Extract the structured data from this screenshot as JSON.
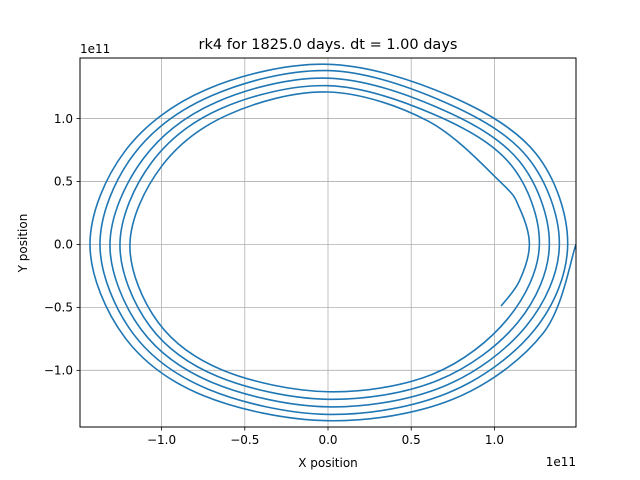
{
  "chart_data": {
    "type": "line",
    "title": "rk4 for 1825.0 days. dt = 1.00 days",
    "xlabel": "X position",
    "ylabel": "Y position",
    "x_offset_label": "1e11",
    "y_offset_label": "1e11",
    "xlim": [
      -1.49,
      1.49
    ],
    "ylim": [
      -1.45,
      1.48
    ],
    "xticks": [
      -1.0,
      -0.5,
      0.0,
      0.5,
      1.0
    ],
    "xtick_labels": [
      "−1.0",
      "−0.5",
      "0.0",
      "0.5",
      "1.0"
    ],
    "yticks": [
      -1.0,
      -0.5,
      0.0,
      0.5,
      1.0
    ],
    "ytick_labels": [
      "−1.0",
      "−0.5",
      "0.0",
      "0.5",
      "1.0"
    ],
    "grid": true,
    "line_color": "#1f77b4",
    "series": [
      {
        "points": [
          [
            1.04,
            -0.49
          ],
          [
            1.15,
            -0.29
          ],
          [
            1.21,
            0.0
          ],
          [
            1.15,
            0.29
          ],
          [
            1.04,
            0.49
          ],
          [
            0.6,
            0.98
          ],
          [
            0.0,
            1.21
          ],
          [
            -0.6,
            1.03
          ],
          [
            -1.0,
            0.62
          ],
          [
            -1.19,
            0.0
          ],
          [
            -1.02,
            -0.62
          ],
          [
            -0.63,
            -1.0
          ],
          [
            0.0,
            -1.17
          ],
          [
            0.63,
            -1.03
          ],
          [
            1.08,
            -0.59
          ],
          [
            1.27,
            0.0
          ],
          [
            1.1,
            0.63
          ],
          [
            0.64,
            1.03
          ],
          [
            0.0,
            1.26
          ],
          [
            -0.64,
            1.08
          ],
          [
            -1.06,
            0.65
          ],
          [
            -1.25,
            0.0
          ],
          [
            -1.07,
            -0.65
          ],
          [
            -0.66,
            -1.05
          ],
          [
            0.0,
            -1.23
          ],
          [
            0.66,
            -1.08
          ],
          [
            1.14,
            -0.62
          ],
          [
            1.33,
            0.0
          ],
          [
            1.15,
            0.66
          ],
          [
            0.67,
            1.08
          ],
          [
            0.0,
            1.32
          ],
          [
            -0.67,
            1.13
          ],
          [
            -1.11,
            0.68
          ],
          [
            -1.31,
            0.0
          ],
          [
            -1.12,
            -0.68
          ],
          [
            -0.69,
            -1.1
          ],
          [
            0.0,
            -1.29
          ],
          [
            0.69,
            -1.13
          ],
          [
            1.19,
            -0.65
          ],
          [
            1.39,
            0.0
          ],
          [
            1.2,
            0.69
          ],
          [
            0.7,
            1.13
          ],
          [
            0.0,
            1.38
          ],
          [
            -0.7,
            1.18
          ],
          [
            -1.17,
            0.71
          ],
          [
            -1.37,
            0.0
          ],
          [
            -1.17,
            -0.71
          ],
          [
            -0.72,
            -1.15
          ],
          [
            0.0,
            -1.35
          ],
          [
            0.72,
            -1.18
          ],
          [
            1.24,
            -0.68
          ],
          [
            1.44,
            0.0
          ],
          [
            1.25,
            0.72
          ],
          [
            0.73,
            1.18
          ],
          [
            0.0,
            1.43
          ],
          [
            -0.73,
            1.23
          ],
          [
            -1.22,
            0.74
          ],
          [
            -1.43,
            0.0
          ],
          [
            -1.22,
            -0.74
          ],
          [
            -0.75,
            -1.2
          ],
          [
            0.0,
            -1.4
          ],
          [
            0.75,
            -1.23
          ],
          [
            1.29,
            -0.71
          ],
          [
            1.49,
            0.0
          ]
        ]
      }
    ]
  }
}
